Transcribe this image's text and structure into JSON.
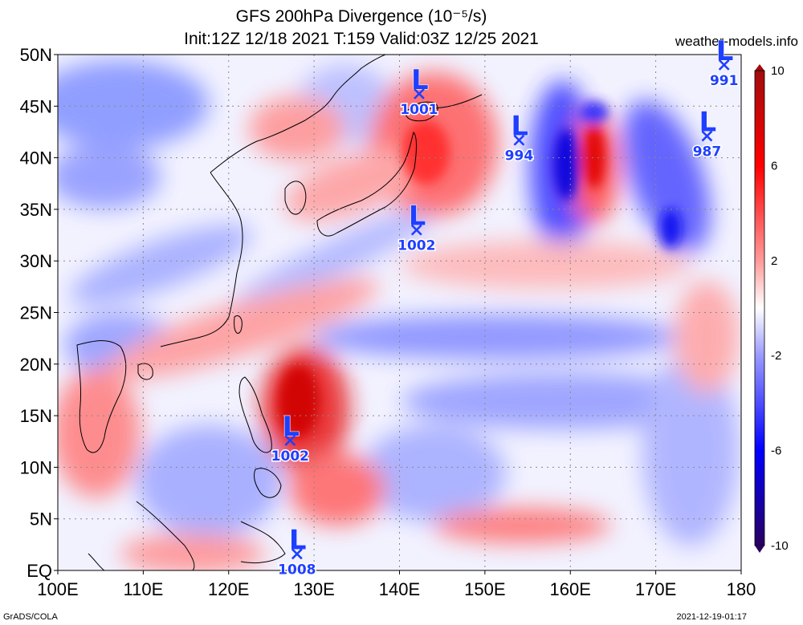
{
  "header": {
    "title_line1": "GFS 200hPa Divergence (10⁻⁵/s)",
    "title_line2": "Init:12Z 12/18 2021 T:159 Valid:03Z 12/25 2021",
    "site": "weather-models.info"
  },
  "footer": {
    "left": "GrADS/COLA",
    "right": "2021-12-19-01:17"
  },
  "map": {
    "lon_range": [
      100,
      180
    ],
    "lat_range": [
      0,
      50
    ],
    "lat_labels": [
      "50N",
      "45N",
      "40N",
      "35N",
      "30N",
      "25N",
      "20N",
      "15N",
      "10N",
      "5N",
      "EQ"
    ],
    "lon_labels": [
      "100E",
      "110E",
      "120E",
      "130E",
      "140E",
      "150E",
      "160E",
      "170E",
      "180"
    ],
    "grid": true
  },
  "colorbar": {
    "labels": [
      "10",
      "6",
      "2",
      "-2",
      "-6",
      "-10"
    ],
    "colors": {
      "max": "#b01010",
      "positive": "#ff0000",
      "neutral": "#ffffff",
      "negative": "#0000ff",
      "min": "#2a0060"
    }
  },
  "lows": [
    {
      "label": "L",
      "pressure": "1001",
      "lon": 142.3,
      "lat": 46.2
    },
    {
      "label": "L",
      "pressure": "994",
      "lon": 154.0,
      "lat": 41.7
    },
    {
      "label": "L",
      "pressure": "987",
      "lon": 176.0,
      "lat": 42.1
    },
    {
      "label": "L",
      "pressure": "991",
      "lon": 178.0,
      "lat": 49.0
    },
    {
      "label": "L",
      "pressure": "1002",
      "lon": 142.0,
      "lat": 33.0
    },
    {
      "label": "L",
      "pressure": "1002",
      "lon": 127.2,
      "lat": 12.6
    },
    {
      "label": "L",
      "pressure": "1008",
      "lon": 128.0,
      "lat": 1.6
    }
  ]
}
